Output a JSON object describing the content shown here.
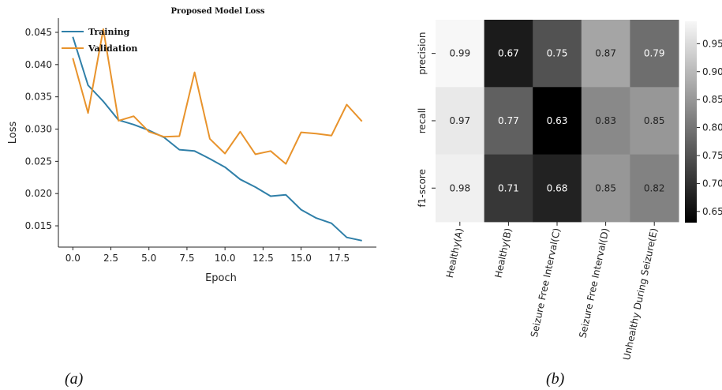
{
  "chart_data": [
    {
      "type": "line",
      "title": "Proposed Model Loss",
      "xlabel": "Epoch",
      "ylabel": "Loss",
      "x": [
        0,
        1,
        2,
        3,
        4,
        5,
        6,
        7,
        8,
        9,
        10,
        11,
        12,
        13,
        14,
        15,
        16,
        17,
        18,
        19
      ],
      "xticks": [
        "0.0",
        "2.5",
        "5.0",
        "7.5",
        "10.0",
        "12.5",
        "15.0",
        "17.5"
      ],
      "yticks": [
        "0.015",
        "0.020",
        "0.025",
        "0.030",
        "0.035",
        "0.040",
        "0.045"
      ],
      "xlim": [
        -0.95,
        19.95
      ],
      "ylim": [
        0.0117,
        0.0472
      ],
      "series": [
        {
          "name": "Training",
          "color": "#2f7fa8",
          "values": [
            0.0443,
            0.0368,
            0.0343,
            0.0314,
            0.0307,
            0.0298,
            0.0287,
            0.0268,
            0.0266,
            0.0254,
            0.0241,
            0.0222,
            0.021,
            0.0196,
            0.0198,
            0.0175,
            0.0162,
            0.0154,
            0.0132,
            0.0127
          ]
        },
        {
          "name": "Validation",
          "color": "#e8932c",
          "values": [
            0.041,
            0.0325,
            0.0455,
            0.0313,
            0.032,
            0.0296,
            0.0288,
            0.0289,
            0.0388,
            0.0285,
            0.0262,
            0.0296,
            0.0261,
            0.0266,
            0.0246,
            0.0295,
            0.0293,
            0.029,
            0.0338,
            0.0312
          ]
        }
      ],
      "legend": "top-left",
      "grid": false
    },
    {
      "type": "heatmap",
      "rows": [
        "precision",
        "recall",
        "f1-score"
      ],
      "columns": [
        "Healthy(A)",
        "Healthy(B)",
        "Seizure Free Interval(C)",
        "Seizure Free Interval(D)",
        "Unhealthy During Seizure(E)"
      ],
      "values": [
        [
          0.99,
          0.67,
          0.75,
          0.87,
          0.79
        ],
        [
          0.97,
          0.77,
          0.63,
          0.83,
          0.85
        ],
        [
          0.98,
          0.71,
          0.68,
          0.85,
          0.82
        ]
      ],
      "labels": [
        [
          "0.99",
          "0.67",
          "0.75",
          "0.87",
          "0.79"
        ],
        [
          "0.97",
          "0.77",
          "0.63",
          "0.83",
          "0.85"
        ],
        [
          "0.98",
          "0.71",
          "0.68",
          "0.85",
          "0.82"
        ]
      ],
      "colormap": "greys",
      "colorbar_range": [
        0.63,
        0.99
      ],
      "colorbar_ticks": [
        "0.65",
        "0.70",
        "0.75",
        "0.80",
        "0.85",
        "0.90",
        "0.95"
      ]
    }
  ],
  "captions": [
    "(a)",
    "(b)"
  ]
}
